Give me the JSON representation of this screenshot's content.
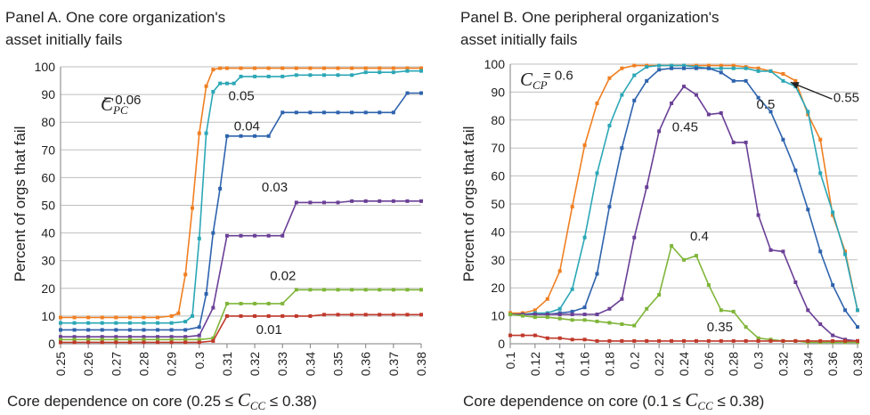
{
  "chart_data": [
    {
      "type": "line",
      "title": "Panel A. One core organization's",
      "subtitle": "asset initially fails",
      "ylabel": "Percent of orgs that fail",
      "xlabel": "Core dependence on core (0.25 ≤ C_CC ≤ 0.38)",
      "xlabel_main": "Core dependence on core (0.25 ≤ ",
      "xlabel_sym": "C",
      "xlabel_sub": "CC",
      "xlabel_tail": " ≤ 0.38)",
      "xlim": [
        0.25,
        0.38
      ],
      "ylim": [
        0,
        100
      ],
      "yticks": [
        0,
        10,
        20,
        30,
        40,
        50,
        60,
        70,
        80,
        90,
        100
      ],
      "xticks": [
        "0.25",
        "0.26",
        "0.27",
        "0.28",
        "0.29",
        "0.3",
        "0.31",
        "0.32",
        "0.33",
        "0.34",
        "0.35",
        "0.36",
        "0.37",
        "0.38"
      ],
      "grid": "horizontal",
      "param_symbol": "C",
      "param_sub": "PC",
      "series": [
        {
          "name": "0.06",
          "color": "#f07f21",
          "x": [
            0.25,
            0.255,
            0.26,
            0.265,
            0.27,
            0.275,
            0.28,
            0.285,
            0.29,
            0.2925,
            0.295,
            0.2975,
            0.3,
            0.3025,
            0.305,
            0.3075,
            0.31,
            0.315,
            0.32,
            0.325,
            0.33,
            0.335,
            0.34,
            0.345,
            0.35,
            0.355,
            0.36,
            0.365,
            0.37,
            0.375,
            0.38
          ],
          "y": [
            9.5,
            9.5,
            9.5,
            9.5,
            9.5,
            9.5,
            9.5,
            9.5,
            10,
            11,
            25,
            49,
            76,
            93,
            99,
            99.5,
            99.5,
            99.5,
            99.5,
            99.5,
            99.5,
            99.5,
            99.5,
            99.5,
            99.5,
            99.5,
            99.5,
            99.5,
            99.5,
            99.5,
            99.5
          ]
        },
        {
          "name": "0.05",
          "color": "#2ba7b6",
          "x": [
            0.25,
            0.255,
            0.26,
            0.265,
            0.27,
            0.275,
            0.28,
            0.285,
            0.29,
            0.295,
            0.2975,
            0.3,
            0.3025,
            0.305,
            0.3075,
            0.31,
            0.3125,
            0.315,
            0.32,
            0.325,
            0.33,
            0.335,
            0.34,
            0.345,
            0.35,
            0.355,
            0.36,
            0.365,
            0.37,
            0.375,
            0.38
          ],
          "y": [
            7.5,
            7.5,
            7.5,
            7.5,
            7.5,
            7.5,
            7.5,
            7.5,
            7.5,
            8,
            10,
            38,
            76,
            91,
            94,
            94,
            94,
            96.5,
            96.5,
            96.5,
            96.5,
            97,
            97,
            97,
            97,
            97,
            98,
            98,
            98,
            98.5,
            98.5
          ]
        },
        {
          "name": "0.04",
          "color": "#2e63ad",
          "x": [
            0.25,
            0.255,
            0.26,
            0.265,
            0.27,
            0.275,
            0.28,
            0.285,
            0.29,
            0.295,
            0.3,
            0.3025,
            0.305,
            0.3075,
            0.31,
            0.315,
            0.32,
            0.325,
            0.33,
            0.335,
            0.34,
            0.345,
            0.35,
            0.355,
            0.36,
            0.365,
            0.37,
            0.375,
            0.38
          ],
          "y": [
            5,
            5,
            5,
            5,
            5,
            5,
            5,
            5,
            5,
            5,
            6,
            18,
            40,
            56,
            75,
            75,
            75,
            75,
            83.5,
            83.5,
            83.5,
            83.5,
            83.5,
            83.5,
            83.5,
            83.5,
            83.5,
            90.5,
            90.5
          ]
        },
        {
          "name": "0.03",
          "color": "#6a3f96",
          "x": [
            0.25,
            0.255,
            0.26,
            0.265,
            0.27,
            0.275,
            0.28,
            0.285,
            0.29,
            0.295,
            0.3,
            0.305,
            0.31,
            0.315,
            0.32,
            0.325,
            0.33,
            0.335,
            0.34,
            0.345,
            0.35,
            0.355,
            0.36,
            0.365,
            0.37,
            0.375,
            0.38
          ],
          "y": [
            2.5,
            2.5,
            2.5,
            2.5,
            2.5,
            2.5,
            2.5,
            2.5,
            2.5,
            2.5,
            3,
            13,
            39,
            39,
            39,
            39,
            39,
            51,
            51,
            51,
            51,
            51.5,
            51.5,
            51.5,
            51.5,
            51.5,
            51.5
          ]
        },
        {
          "name": "0.02",
          "color": "#7fb539",
          "x": [
            0.25,
            0.255,
            0.26,
            0.265,
            0.27,
            0.275,
            0.28,
            0.285,
            0.29,
            0.295,
            0.3,
            0.305,
            0.31,
            0.315,
            0.32,
            0.325,
            0.33,
            0.335,
            0.34,
            0.345,
            0.35,
            0.355,
            0.36,
            0.365,
            0.37,
            0.375,
            0.38
          ],
          "y": [
            1.5,
            1.5,
            1.5,
            1.5,
            1.5,
            1.5,
            1.5,
            1.5,
            1.5,
            1.5,
            1.5,
            2,
            14.5,
            14.5,
            14.5,
            14.5,
            14.5,
            19.5,
            19.5,
            19.5,
            19.5,
            19.5,
            19.5,
            19.5,
            19.5,
            19.5,
            19.5
          ]
        },
        {
          "name": "0.01",
          "color": "#c0392b",
          "x": [
            0.25,
            0.255,
            0.26,
            0.265,
            0.27,
            0.275,
            0.28,
            0.285,
            0.29,
            0.295,
            0.3,
            0.305,
            0.31,
            0.315,
            0.32,
            0.325,
            0.33,
            0.335,
            0.34,
            0.345,
            0.35,
            0.355,
            0.36,
            0.365,
            0.37,
            0.375,
            0.38
          ],
          "y": [
            0.5,
            0.5,
            0.5,
            0.5,
            0.5,
            0.5,
            0.5,
            0.5,
            0.5,
            0.5,
            0.5,
            1,
            10,
            10,
            10,
            10,
            10,
            10,
            10,
            10.5,
            10.5,
            10.5,
            10.5,
            10.5,
            10.5,
            10.5,
            10.5
          ]
        }
      ],
      "labels": [
        {
          "text": "= 0.06",
          "x": 0.2655,
          "y": 86.5
        },
        {
          "text": "0.05",
          "x": 0.3105,
          "y": 88
        },
        {
          "text": "0.04",
          "x": 0.3125,
          "y": 77
        },
        {
          "text": "0.03",
          "x": 0.3225,
          "y": 55
        },
        {
          "text": "0.02",
          "x": 0.3255,
          "y": 23
        },
        {
          "text": "0.01",
          "x": 0.3205,
          "y": 3.5
        }
      ]
    },
    {
      "type": "line",
      "title": "Panel B. One peripheral organization's",
      "subtitle": "asset initially fails",
      "ylabel": "Percent of orgs that fail",
      "xlabel": "Core dependence on core (0.1 ≤ C_CC ≤ 0.38)",
      "xlabel_main": "Core dependence on core (0.1 ≤ ",
      "xlabel_sym": "C",
      "xlabel_sub": "CC",
      "xlabel_tail": " ≤ 0.38)",
      "xlim": [
        0.1,
        0.38
      ],
      "ylim": [
        0,
        100
      ],
      "yticks": [
        0,
        10,
        20,
        30,
        40,
        50,
        60,
        70,
        80,
        90,
        100
      ],
      "xticks": [
        "0.1",
        "0.12",
        "0.14",
        "0.16",
        "0.18",
        "0.2",
        "0.22",
        "0.24",
        "0.26",
        "0.28",
        "0.3",
        "0.32",
        "0.34",
        "0.36",
        "0.38"
      ],
      "grid": "horizontal",
      "param_symbol": "C",
      "param_sub": "CP",
      "series": [
        {
          "name": "0.6",
          "color": "#f07f21",
          "x": [
            0.1,
            0.11,
            0.12,
            0.13,
            0.14,
            0.15,
            0.16,
            0.17,
            0.18,
            0.19,
            0.2,
            0.21,
            0.22,
            0.23,
            0.24,
            0.25,
            0.26,
            0.27,
            0.28,
            0.29,
            0.3,
            0.31,
            0.32,
            0.33,
            0.34,
            0.35,
            0.36,
            0.37,
            0.38
          ],
          "y": [
            11,
            11,
            12,
            16,
            26,
            49,
            71,
            86,
            95,
            98.5,
            99.5,
            99.5,
            99.5,
            99.5,
            99.5,
            99.5,
            99.5,
            99.5,
            99.5,
            99,
            98.5,
            97.5,
            96.5,
            94,
            82,
            73,
            46,
            33,
            12
          ]
        },
        {
          "name": "0.55",
          "color": "#2ba7b6",
          "x": [
            0.1,
            0.11,
            0.12,
            0.13,
            0.14,
            0.15,
            0.16,
            0.17,
            0.18,
            0.19,
            0.2,
            0.21,
            0.22,
            0.23,
            0.24,
            0.25,
            0.26,
            0.27,
            0.28,
            0.29,
            0.3,
            0.31,
            0.32,
            0.33,
            0.34,
            0.35,
            0.36,
            0.37,
            0.38
          ],
          "y": [
            10.5,
            10.5,
            11,
            11,
            12.5,
            19.5,
            38,
            61,
            78,
            89,
            96,
            99,
            99.5,
            99.5,
            99.5,
            99,
            98.5,
            98.5,
            98.5,
            98.5,
            97.5,
            97.5,
            94,
            92,
            83,
            61,
            47,
            32,
            12
          ]
        },
        {
          "name": "0.5",
          "color": "#2e63ad",
          "x": [
            0.1,
            0.11,
            0.12,
            0.13,
            0.14,
            0.15,
            0.16,
            0.17,
            0.18,
            0.19,
            0.2,
            0.21,
            0.22,
            0.23,
            0.24,
            0.25,
            0.26,
            0.27,
            0.28,
            0.29,
            0.3,
            0.31,
            0.32,
            0.33,
            0.34,
            0.35,
            0.36,
            0.37,
            0.38
          ],
          "y": [
            10.5,
            10.5,
            10.5,
            10.5,
            11,
            11.5,
            13,
            25,
            49,
            70,
            87,
            94,
            98,
            98.5,
            98.5,
            98.5,
            98.5,
            97,
            94,
            94,
            88,
            83,
            73,
            62,
            48,
            33,
            21,
            12,
            6
          ]
        },
        {
          "name": "0.45",
          "color": "#6a3f96",
          "x": [
            0.1,
            0.11,
            0.12,
            0.13,
            0.14,
            0.15,
            0.16,
            0.17,
            0.18,
            0.19,
            0.2,
            0.21,
            0.22,
            0.23,
            0.24,
            0.25,
            0.26,
            0.27,
            0.28,
            0.29,
            0.3,
            0.31,
            0.32,
            0.33,
            0.34,
            0.35,
            0.36,
            0.37,
            0.38
          ],
          "y": [
            10.5,
            10.5,
            10.5,
            10.5,
            10.5,
            10.5,
            10.5,
            10.5,
            12.5,
            16,
            38,
            56,
            76,
            86,
            92,
            89,
            82,
            82.5,
            72,
            72,
            46,
            33.5,
            33,
            22,
            12,
            7,
            3,
            1.5,
            1
          ]
        },
        {
          "name": "0.4",
          "color": "#7fb539",
          "x": [
            0.1,
            0.11,
            0.12,
            0.13,
            0.14,
            0.15,
            0.16,
            0.17,
            0.18,
            0.19,
            0.2,
            0.21,
            0.22,
            0.23,
            0.24,
            0.25,
            0.26,
            0.27,
            0.28,
            0.29,
            0.3,
            0.31,
            0.32,
            0.33,
            0.34,
            0.35,
            0.36,
            0.37,
            0.38
          ],
          "y": [
            10.5,
            10,
            9.5,
            9.5,
            9,
            8.5,
            8.5,
            8,
            7.5,
            7,
            6.5,
            12.5,
            17.5,
            35,
            30,
            31.5,
            21,
            12,
            11.5,
            6,
            2,
            1.5,
            1,
            1,
            0.5,
            0.5,
            0.5,
            0.5,
            0.5
          ]
        },
        {
          "name": "0.35",
          "color": "#c0392b",
          "x": [
            0.1,
            0.11,
            0.12,
            0.13,
            0.14,
            0.15,
            0.16,
            0.17,
            0.18,
            0.19,
            0.2,
            0.21,
            0.22,
            0.23,
            0.24,
            0.25,
            0.26,
            0.27,
            0.28,
            0.29,
            0.3,
            0.31,
            0.32,
            0.33,
            0.34,
            0.35,
            0.36,
            0.37,
            0.38
          ],
          "y": [
            3,
            3,
            3,
            2,
            2,
            1.5,
            1.5,
            1,
            1,
            1,
            1,
            1,
            1,
            1,
            1,
            1,
            1,
            1,
            1,
            1,
            1,
            1,
            1,
            1,
            1,
            1,
            1,
            1,
            1
          ]
        }
      ],
      "labels": [
        {
          "text": "= 0.6",
          "x": 0.1265,
          "y": 94.5
        },
        {
          "text": "0.55",
          "x": 0.3605,
          "y": 86.5
        },
        {
          "text": "0.5",
          "x": 0.2985,
          "y": 84
        },
        {
          "text": "0.45",
          "x": 0.2305,
          "y": 76
        },
        {
          "text": "0.4",
          "x": 0.245,
          "y": 37
        },
        {
          "text": "0.35",
          "x": 0.2585,
          "y": 4.5
        }
      ],
      "arrow": {
        "from": [
          0.3595,
          87.5
        ],
        "to": [
          0.326,
          93.5
        ]
      }
    }
  ]
}
